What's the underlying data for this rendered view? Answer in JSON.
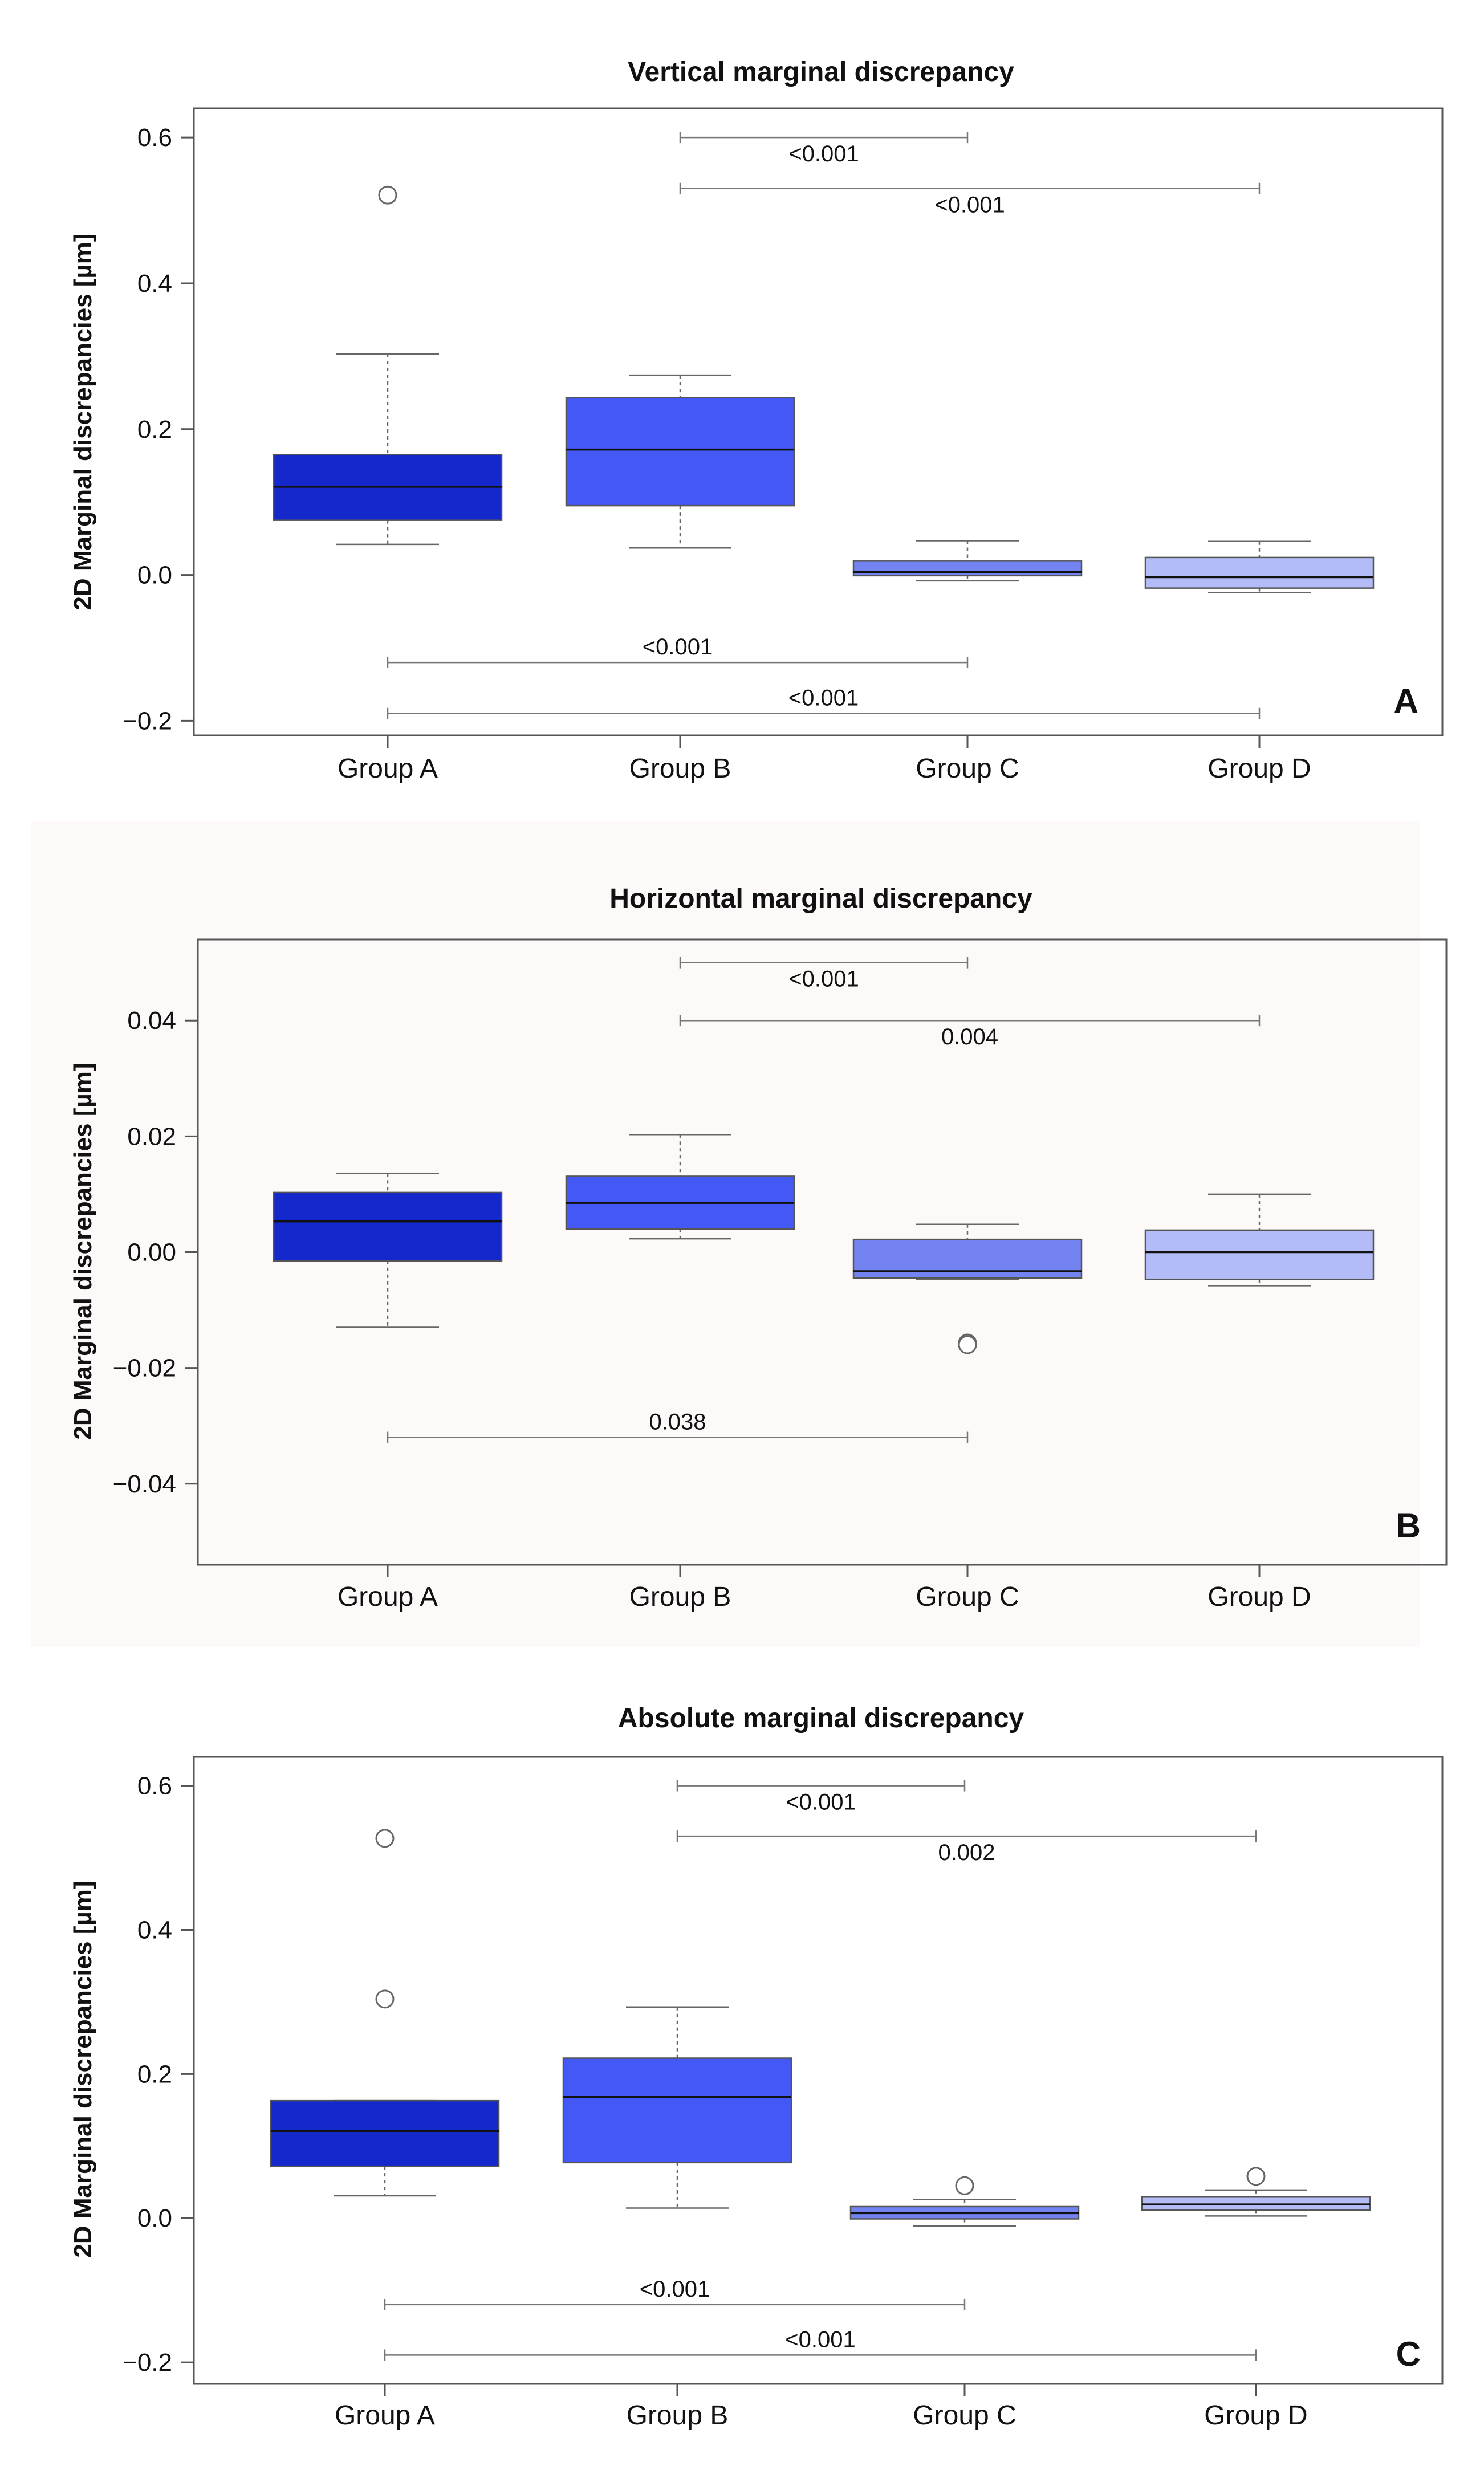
{
  "chart_data": [
    {
      "type": "box",
      "letter": "A",
      "title": "Vertical marginal discrepancy",
      "ylabel": "2D Marginal discrepancies [µm]",
      "ylim": [
        -0.22,
        0.64
      ],
      "yticks": [
        -0.2,
        0.0,
        0.2,
        0.4,
        0.6
      ],
      "ytick_labels": [
        "−0.2",
        "0.0",
        "0.2",
        "0.4",
        "0.6"
      ],
      "categories": [
        "Group A",
        "Group B",
        "Group C",
        "Group D"
      ],
      "colors": [
        "#1428cc",
        "#4458f5",
        "#7384f2",
        "#b3bcf6"
      ],
      "groups": [
        {
          "whisker_low": 0.042,
          "q1": 0.075,
          "median": 0.121,
          "q3": 0.165,
          "whisker_high": 0.303,
          "outliers": [
            0.521
          ]
        },
        {
          "whisker_low": 0.037,
          "q1": 0.095,
          "median": 0.172,
          "q3": 0.243,
          "whisker_high": 0.274,
          "outliers": []
        },
        {
          "whisker_low": -0.008,
          "q1": -0.001,
          "median": 0.004,
          "q3": 0.019,
          "whisker_high": 0.047,
          "outliers": []
        },
        {
          "whisker_low": -0.024,
          "q1": -0.018,
          "median": -0.003,
          "q3": 0.024,
          "whisker_high": 0.046,
          "outliers": []
        }
      ],
      "comparisons": [
        {
          "from": 1,
          "to": 2,
          "y": 0.6,
          "label": "<0.001",
          "label_pos": "below"
        },
        {
          "from": 1,
          "to": 3,
          "y": 0.53,
          "label": "<0.001",
          "label_pos": "below"
        },
        {
          "from": 0,
          "to": 2,
          "y": -0.12,
          "label": "<0.001",
          "label_pos": "above"
        },
        {
          "from": 0,
          "to": 3,
          "y": -0.19,
          "label": "<0.001",
          "label_pos": "above"
        }
      ]
    },
    {
      "type": "box",
      "letter": "B",
      "title": "Horizontal marginal discrepancy",
      "ylabel": "2D Marginal discrepancies [µm]",
      "ylim": [
        -0.054,
        0.054
      ],
      "yticks": [
        -0.04,
        -0.02,
        0.0,
        0.02,
        0.04
      ],
      "ytick_labels": [
        "−0.04",
        "−0.02",
        "0.00",
        "0.02",
        "0.04"
      ],
      "categories": [
        "Group A",
        "Group B",
        "Group C",
        "Group D"
      ],
      "colors": [
        "#1428cc",
        "#4458f5",
        "#7384f2",
        "#b3bcf6"
      ],
      "groups": [
        {
          "whisker_low": -0.013,
          "q1": -0.0015,
          "median": 0.0053,
          "q3": 0.0103,
          "whisker_high": 0.0136,
          "outliers": []
        },
        {
          "whisker_low": 0.0023,
          "q1": 0.004,
          "median": 0.0085,
          "q3": 0.0131,
          "whisker_high": 0.0203,
          "outliers": []
        },
        {
          "whisker_low": -0.0047,
          "q1": -0.0045,
          "median": -0.0033,
          "q3": 0.0022,
          "whisker_high": 0.0048,
          "outliers": [
            -0.0157,
            -0.016
          ]
        },
        {
          "whisker_low": -0.0058,
          "q1": -0.0047,
          "median": 0.0,
          "q3": 0.0038,
          "whisker_high": 0.01,
          "outliers": []
        }
      ],
      "comparisons": [
        {
          "from": 1,
          "to": 2,
          "y": 0.05,
          "label": "<0.001",
          "label_pos": "below"
        },
        {
          "from": 1,
          "to": 3,
          "y": 0.04,
          "label": "0.004",
          "label_pos": "below"
        },
        {
          "from": 0,
          "to": 2,
          "y": -0.032,
          "label": "0.038",
          "label_pos": "above"
        }
      ]
    },
    {
      "type": "box",
      "letter": "C",
      "title": "Absolute marginal discrepancy",
      "ylabel": "2D Marginal discrepancies [µm]",
      "ylim": [
        -0.23,
        0.64
      ],
      "yticks": [
        -0.2,
        0.0,
        0.2,
        0.4,
        0.6
      ],
      "ytick_labels": [
        "−0.2",
        "0.0",
        "0.2",
        "0.4",
        "0.6"
      ],
      "categories": [
        "Group A",
        "Group B",
        "Group C",
        "Group D"
      ],
      "colors": [
        "#1428cc",
        "#4458f5",
        "#7384f2",
        "#b3bcf6"
      ],
      "groups": [
        {
          "whisker_low": 0.031,
          "q1": 0.072,
          "median": 0.121,
          "q3": 0.163,
          "whisker_high": 0.163,
          "outliers": [
            0.527,
            0.304
          ]
        },
        {
          "whisker_low": 0.014,
          "q1": 0.077,
          "median": 0.168,
          "q3": 0.222,
          "whisker_high": 0.293,
          "outliers": []
        },
        {
          "whisker_low": -0.011,
          "q1": -0.001,
          "median": 0.007,
          "q3": 0.016,
          "whisker_high": 0.026,
          "outliers": [
            0.045
          ]
        },
        {
          "whisker_low": 0.003,
          "q1": 0.011,
          "median": 0.019,
          "q3": 0.03,
          "whisker_high": 0.039,
          "outliers": [
            0.058
          ]
        }
      ],
      "comparisons": [
        {
          "from": 1,
          "to": 2,
          "y": 0.6,
          "label": "<0.001",
          "label_pos": "below"
        },
        {
          "from": 1,
          "to": 3,
          "y": 0.53,
          "label": "0.002",
          "label_pos": "below"
        },
        {
          "from": 0,
          "to": 2,
          "y": -0.12,
          "label": "<0.001",
          "label_pos": "above"
        },
        {
          "from": 0,
          "to": 3,
          "y": -0.19,
          "label": "<0.001",
          "label_pos": "above"
        }
      ]
    }
  ]
}
